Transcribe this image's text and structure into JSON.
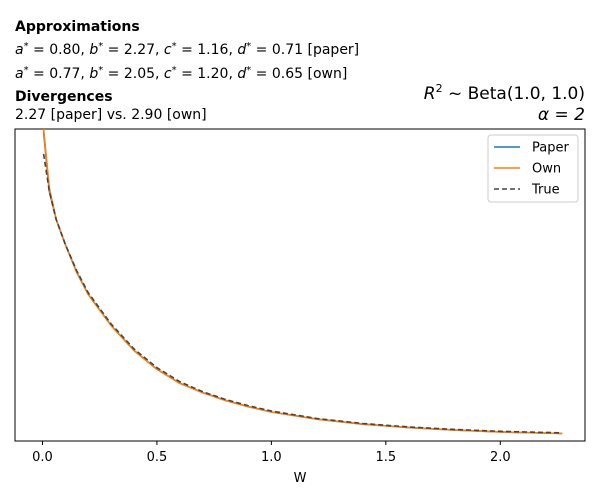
{
  "chart_data": {
    "type": "line",
    "annotations": {
      "approx_heading": "Approximations",
      "paper_line": {
        "a": "0.80",
        "b": "2.27",
        "c": "1.16",
        "d": "0.71",
        "tag": "[paper]"
      },
      "own_line": {
        "a": "0.77",
        "b": "2.05",
        "c": "1.20",
        "d": "0.65",
        "tag": "[own]"
      },
      "div_heading": "Divergences",
      "div_text": "2.27 [paper] vs. 2.90 [own]"
    },
    "title_right": {
      "prior_prefix": "R",
      "prior_sup": "2",
      "prior_rest": " ~  Beta(1.0, 1.0)",
      "alpha": "α = 2"
    },
    "xlabel": "W",
    "ylabel": "",
    "xlim": [
      -0.12,
      2.37
    ],
    "ylim": [
      0,
      1
    ],
    "x_ticks": [
      0.0,
      0.5,
      1.0,
      1.5,
      2.0
    ],
    "x_tick_labels": [
      "0.0",
      "0.5",
      "1.0",
      "1.5",
      "2.0"
    ],
    "y_ticks_visible": false,
    "legend": {
      "position": "top-right"
    },
    "colors": {
      "paper": "#1f77b4",
      "own": "#ff7f0e",
      "true": "#444444"
    },
    "series": [
      {
        "name": "Paper",
        "x": [
          0.005,
          0.03,
          0.06,
          0.1,
          0.15,
          0.2,
          0.3,
          0.4,
          0.5,
          0.6,
          0.7,
          0.8,
          0.9,
          1.0,
          1.2,
          1.4,
          1.6,
          1.8,
          2.0,
          2.27
        ],
        "y": [
          0.99,
          0.8,
          0.71,
          0.63,
          0.54,
          0.47,
          0.37,
          0.29,
          0.23,
          0.185,
          0.155,
          0.13,
          0.11,
          0.093,
          0.07,
          0.054,
          0.043,
          0.035,
          0.029,
          0.024
        ]
      },
      {
        "name": "Own",
        "x": [
          0.005,
          0.03,
          0.06,
          0.1,
          0.15,
          0.2,
          0.3,
          0.4,
          0.5,
          0.6,
          0.7,
          0.8,
          0.9,
          1.0,
          1.2,
          1.4,
          1.6,
          1.8,
          2.0,
          2.27
        ],
        "y": [
          1.0,
          0.81,
          0.71,
          0.63,
          0.54,
          0.47,
          0.37,
          0.29,
          0.23,
          0.185,
          0.155,
          0.13,
          0.11,
          0.093,
          0.07,
          0.054,
          0.043,
          0.035,
          0.029,
          0.024
        ]
      },
      {
        "name": "True",
        "x": [
          0.005,
          0.03,
          0.06,
          0.1,
          0.15,
          0.2,
          0.3,
          0.4,
          0.5,
          0.6,
          0.7,
          0.8,
          0.9,
          1.0,
          1.2,
          1.4,
          1.6,
          1.8,
          2.0,
          2.27
        ],
        "y": [
          0.92,
          0.8,
          0.71,
          0.63,
          0.545,
          0.475,
          0.375,
          0.295,
          0.235,
          0.19,
          0.158,
          0.133,
          0.113,
          0.096,
          0.072,
          0.056,
          0.045,
          0.037,
          0.031,
          0.026
        ]
      }
    ]
  }
}
